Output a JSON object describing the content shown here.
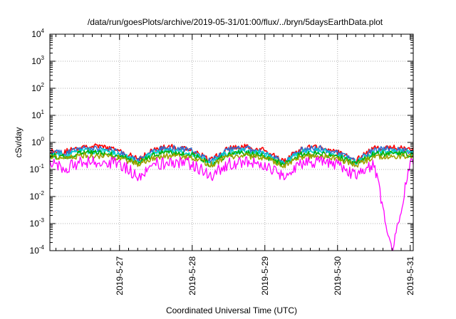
{
  "chart_data": {
    "type": "area",
    "title": "/data/run/goesPlots/archive/2019-05-31/01:00/flux/../bryn/5daysEarthData.plot",
    "xlabel": "Coordinated Universal Time (UTC)",
    "ylabel": "cSv/day",
    "y_scale": "log",
    "ylim": [
      0.0001,
      10000
    ],
    "y_ticks": [
      {
        "value": 0.0001,
        "base": "10",
        "exp": "-4"
      },
      {
        "value": 0.001,
        "base": "10",
        "exp": "-3"
      },
      {
        "value": 0.01,
        "base": "10",
        "exp": "-2"
      },
      {
        "value": 0.1,
        "base": "10",
        "exp": "-1"
      },
      {
        "value": 1,
        "base": "10",
        "exp": "0"
      },
      {
        "value": 10,
        "base": "10",
        "exp": "1"
      },
      {
        "value": 100,
        "base": "10",
        "exp": "2"
      },
      {
        "value": 1000,
        "base": "10",
        "exp": "3"
      },
      {
        "value": 10000,
        "base": "10",
        "exp": "4"
      }
    ],
    "xlim": [
      "2019-05-26 01:00",
      "2019-05-31 01:00"
    ],
    "x_ticks": [
      "2019-5-27",
      "2019-5-28",
      "2019-5-29",
      "2019-5-30",
      "2019-5-31"
    ],
    "grid": true,
    "legend": "none",
    "x": [
      "2019-05-26 01:00",
      "2019-05-26 06:00",
      "2019-05-26 12:00",
      "2019-05-26 18:00",
      "2019-05-27 00:00",
      "2019-05-27 06:00",
      "2019-05-27 12:00",
      "2019-05-27 18:00",
      "2019-05-28 00:00",
      "2019-05-28 06:00",
      "2019-05-28 12:00",
      "2019-05-28 18:00",
      "2019-05-29 00:00",
      "2019-05-29 06:00",
      "2019-05-29 12:00",
      "2019-05-29 18:00",
      "2019-05-30 00:00",
      "2019-05-30 06:00",
      "2019-05-30 12:00",
      "2019-05-30 18:00",
      "2019-05-31 00:00",
      "2019-05-31 01:00"
    ],
    "series": [
      {
        "color": "#ff0000",
        "values": [
          0.5,
          0.45,
          0.75,
          0.7,
          0.5,
          0.25,
          0.6,
          0.7,
          0.55,
          0.22,
          0.6,
          0.7,
          0.5,
          0.2,
          0.6,
          0.7,
          0.45,
          0.22,
          0.6,
          0.65,
          0.55,
          0.5
        ]
      },
      {
        "color": "#3070d0",
        "values": [
          0.45,
          0.4,
          0.65,
          0.62,
          0.45,
          0.22,
          0.55,
          0.62,
          0.5,
          0.2,
          0.55,
          0.62,
          0.45,
          0.18,
          0.55,
          0.62,
          0.4,
          0.2,
          0.55,
          0.58,
          0.5,
          0.45
        ]
      },
      {
        "color": "#00d0d0",
        "values": [
          0.38,
          0.35,
          0.5,
          0.48,
          0.38,
          0.2,
          0.45,
          0.5,
          0.4,
          0.18,
          0.45,
          0.5,
          0.38,
          0.17,
          0.45,
          0.5,
          0.35,
          0.18,
          0.45,
          0.48,
          0.42,
          0.38
        ]
      },
      {
        "color": "#00b000",
        "values": [
          0.33,
          0.3,
          0.42,
          0.4,
          0.33,
          0.18,
          0.38,
          0.42,
          0.35,
          0.16,
          0.38,
          0.42,
          0.33,
          0.15,
          0.38,
          0.42,
          0.3,
          0.16,
          0.38,
          0.4,
          0.36,
          0.33
        ]
      },
      {
        "color": "#a0a000",
        "values": [
          0.28,
          0.26,
          0.33,
          0.32,
          0.28,
          0.16,
          0.3,
          0.33,
          0.29,
          0.15,
          0.3,
          0.33,
          0.28,
          0.14,
          0.3,
          0.33,
          0.26,
          0.15,
          0.3,
          0.32,
          0.3,
          0.28
        ]
      },
      {
        "color": "#ff00ff",
        "values": [
          0.2,
          0.12,
          0.2,
          0.2,
          0.18,
          0.06,
          0.17,
          0.2,
          0.17,
          0.06,
          0.17,
          0.2,
          0.16,
          0.06,
          0.17,
          0.2,
          0.15,
          0.06,
          0.17,
          0.0001,
          0.17,
          0.16
        ]
      }
    ]
  }
}
